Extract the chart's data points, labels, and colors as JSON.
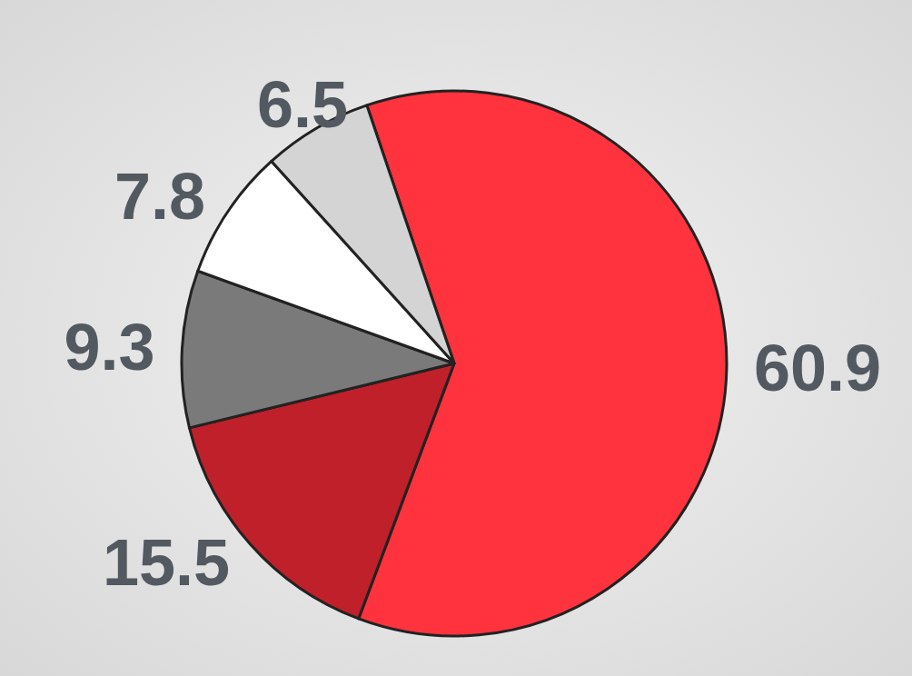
{
  "chart_data": {
    "type": "pie",
    "categories": [
      null,
      null,
      null,
      null,
      null
    ],
    "values": [
      60.9,
      15.5,
      9.3,
      7.8,
      6.5
    ],
    "colors": [
      "#ff333d",
      "#c0202a",
      "#7a7a7a",
      "#ffffff",
      "#d4d4d4"
    ],
    "data_labels": true
  }
}
